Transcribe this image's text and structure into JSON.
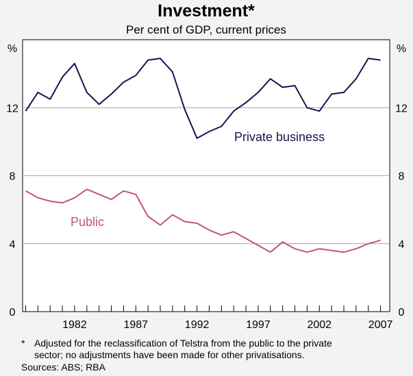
{
  "chart_data": {
    "type": "line",
    "title": "Investment*",
    "subtitle": "Per cent of GDP, current prices",
    "ylabel_left": "%",
    "ylabel_right": "%",
    "ylim": [
      0,
      16
    ],
    "yticks": [
      0,
      4,
      8,
      12
    ],
    "xlim": [
      1977.75,
      2007.75
    ],
    "xticks": [
      1982,
      1987,
      1992,
      1997,
      2002,
      2007
    ],
    "x": [
      1978,
      1979,
      1980,
      1981,
      1982,
      1983,
      1984,
      1985,
      1986,
      1987,
      1988,
      1989,
      1990,
      1991,
      1992,
      1993,
      1994,
      1995,
      1996,
      1997,
      1998,
      1999,
      2000,
      2001,
      2002,
      2003,
      2004,
      2005,
      2006,
      2007
    ],
    "series": [
      {
        "name": "Private business",
        "color": "#141450",
        "values": [
          11.8,
          12.9,
          12.5,
          13.8,
          14.6,
          12.9,
          12.2,
          12.8,
          13.5,
          13.9,
          14.8,
          14.9,
          14.1,
          11.9,
          10.2,
          10.6,
          10.9,
          11.8,
          12.3,
          12.9,
          13.7,
          13.2,
          13.3,
          12.0,
          11.8,
          12.8,
          12.9,
          13.7,
          14.9,
          14.8
        ]
      },
      {
        "name": "Public",
        "color": "#c2508a",
        "values": [
          7.1,
          6.7,
          6.5,
          6.4,
          6.7,
          7.2,
          6.9,
          6.6,
          7.1,
          6.9,
          5.6,
          5.1,
          5.7,
          5.3,
          5.2,
          4.8,
          4.5,
          4.7,
          4.3,
          3.9,
          3.5,
          4.1,
          3.7,
          3.5,
          3.7,
          3.6,
          3.5,
          3.7,
          4.0,
          4.2
        ]
      }
    ],
    "footnote_marker": "*",
    "footnote": "Adjusted for the reclassification of Telstra from the public to the private",
    "footnote_cont": "sector; no adjustments have been made for other privatisations.",
    "sources": "Sources: ABS; RBA"
  }
}
